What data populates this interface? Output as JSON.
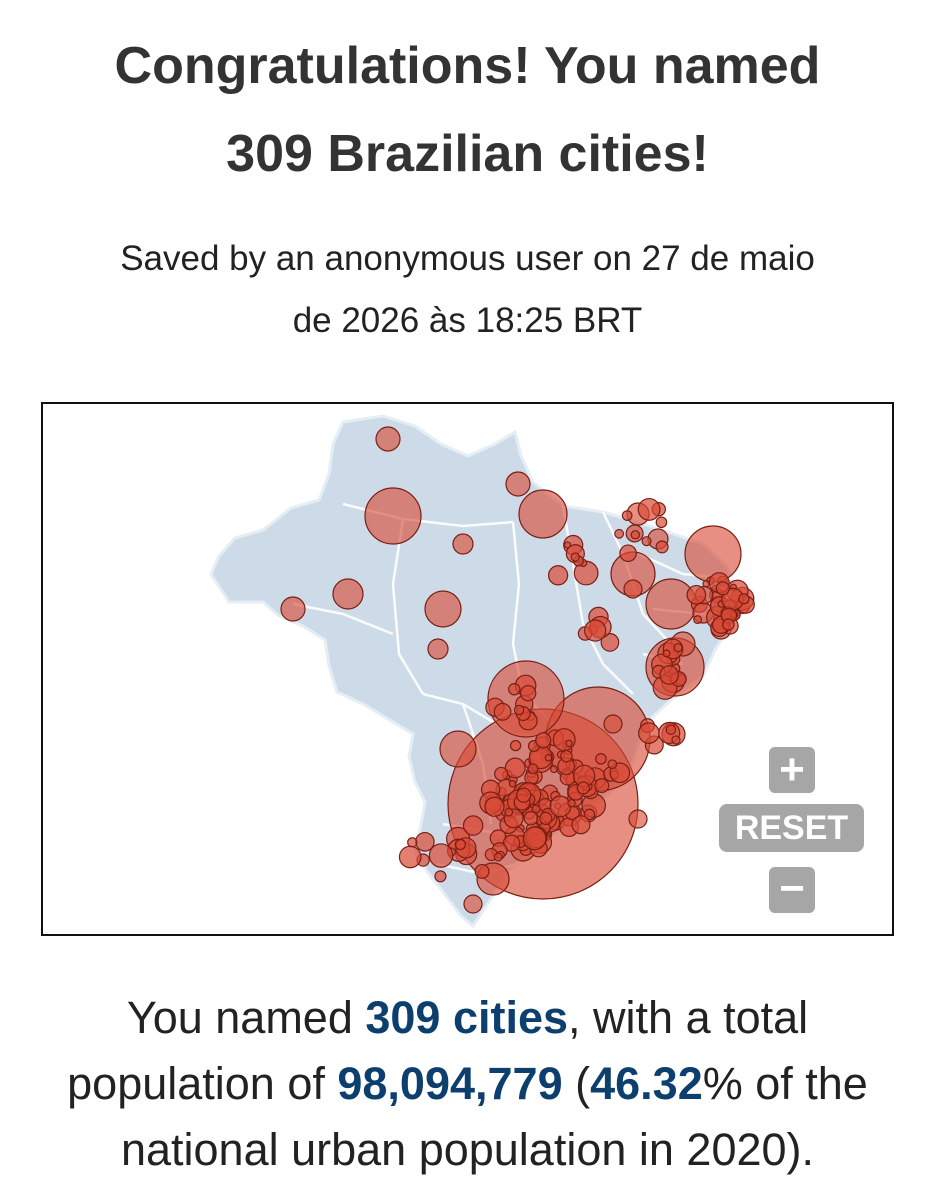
{
  "header": {
    "title_line1": "Congratulations! You named",
    "title_line2": "309 Brazilian cities!"
  },
  "saved_info": {
    "line1": "Saved by an anonymous user on 27 de maio",
    "line2": "de 2026 às 18:25 BRT"
  },
  "map": {
    "land_color": "#cddbe8",
    "border_color": "#ffffff",
    "marker_fill": "#d94a36",
    "marker_stroke": "#7a1f14",
    "controls": {
      "zoom_in": "+",
      "reset": "RESET",
      "zoom_out": "−",
      "control_color": "#a6a6a6"
    }
  },
  "summary": {
    "pre_count": "You named ",
    "count": "309 cities",
    "post_count": ", with a total",
    "pre_population": "population of ",
    "population": "98,094,779",
    "open_paren": " (",
    "percent": "46.32",
    "post_percent": "% of the",
    "line3": "national urban population in 2020).",
    "highlight_color": "#0d3f6e"
  }
}
